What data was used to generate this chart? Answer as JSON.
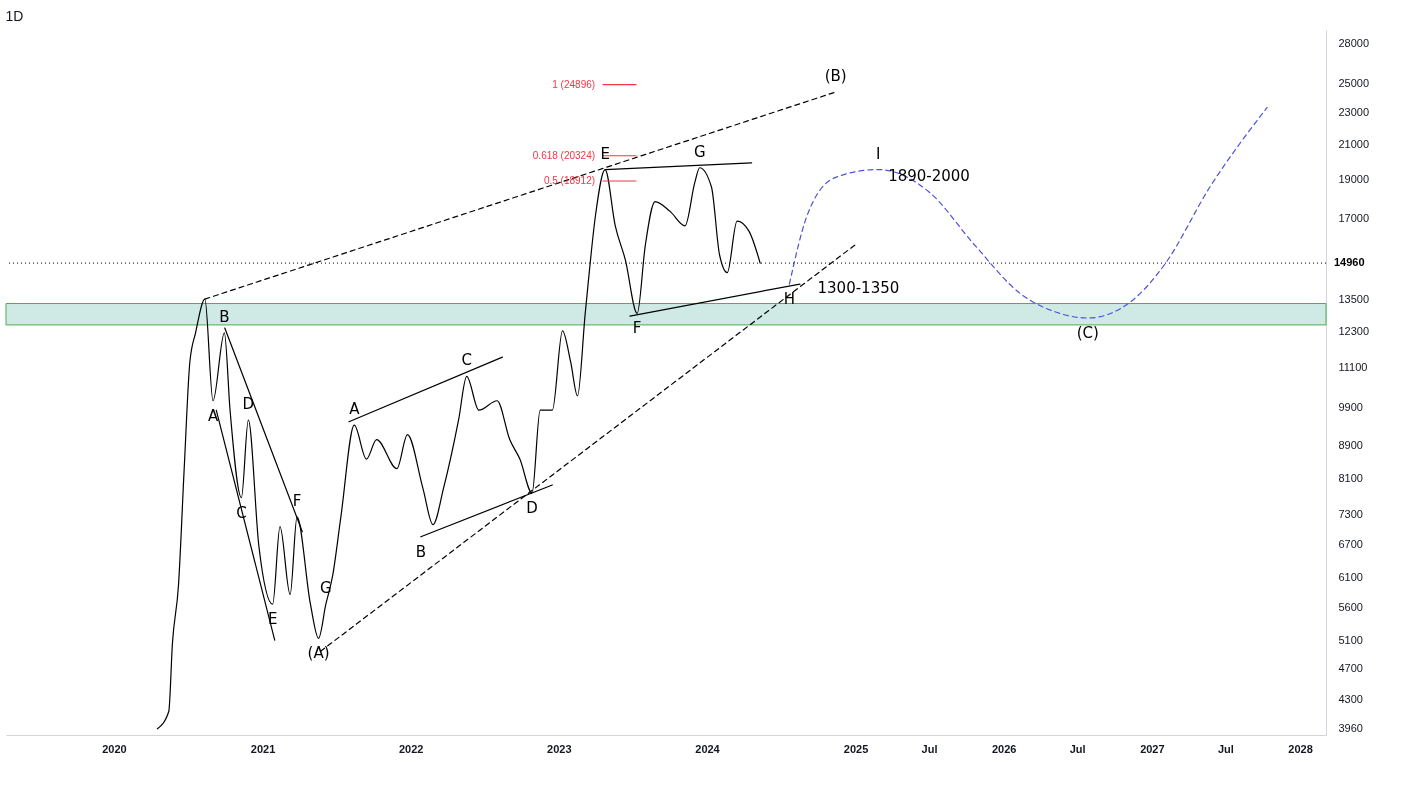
{
  "chart_data": {
    "type": "line",
    "title": "1D",
    "log": "y",
    "xlim": [
      "2019-04-10",
      "2028-03-05"
    ],
    "ylim": [
      3890,
      29100
    ],
    "xticks": [
      {
        "value": "2020",
        "label": "2020"
      },
      {
        "value": "2021",
        "label": "2021"
      },
      {
        "value": "2022",
        "label": "2022"
      },
      {
        "value": "2023",
        "label": "2023"
      },
      {
        "value": "2024",
        "label": "2024"
      },
      {
        "value": "2025",
        "label": "2025"
      },
      {
        "value": "2025-07",
        "label": "Jul"
      },
      {
        "value": "2026",
        "label": "2026"
      },
      {
        "value": "2026-07",
        "label": "Jul"
      },
      {
        "value": "2027",
        "label": "2027"
      },
      {
        "value": "2027-07",
        "label": "Jul"
      },
      {
        "value": "2028",
        "label": "2028"
      }
    ],
    "yticks": [
      28000,
      25000,
      23000,
      21000,
      19000,
      17000,
      13500,
      12300,
      11100,
      9900,
      8900,
      8100,
      7300,
      6700,
      6100,
      5600,
      5100,
      4700,
      4300,
      3960
    ],
    "series": [
      {
        "color": "#000000",
        "x": [
          "2020-04-17",
          "2020-05-15",
          "2020-05-24",
          "2020-06-08",
          "2020-06-22",
          "2020-07-06",
          "2020-07-20",
          "2020-08-12",
          "2020-09-01",
          "2020-09-29",
          "2020-10-13",
          "2020-11-10",
          "2020-11-27",
          "2020-12-23",
          "2021-01-26",
          "2021-02-13",
          "2021-03-10",
          "2021-03-27",
          "2021-04-29",
          "2021-05-19",
          "2021-06-06",
          "2021-06-23",
          "2021-07-13",
          "2021-08-15",
          "2021-09-14",
          "2021-10-09",
          "2021-11-28",
          "2021-12-24",
          "2022-01-31",
          "2022-02-25",
          "2022-03-23",
          "2022-04-29",
          "2022-05-19",
          "2022-06-18",
          "2022-08-02",
          "2022-09-02",
          "2022-09-27",
          "2022-10-27",
          "2022-11-16",
          "2022-12-16",
          "2023-01-10",
          "2023-01-30",
          "2023-02-16",
          "2023-03-07",
          "2023-03-14",
          "2023-04-01",
          "2023-04-25",
          "2023-05-20",
          "2023-06-14",
          "2023-07-13",
          "2023-08-02",
          "2023-08-26",
          "2023-10-02",
          "2023-11-08",
          "2023-12-02",
          "2023-12-14",
          "2024-01-12",
          "2024-02-01",
          "2024-02-20",
          "2024-03-15",
          "2024-04-13",
          "2024-05-11"
        ],
        "values": [
          3960,
          4160,
          5050,
          5970,
          8320,
          11290,
          12260,
          13500,
          10100,
          12260,
          9830,
          7660,
          9560,
          6670,
          5650,
          7050,
          5810,
          7250,
          5650,
          5125,
          5650,
          6140,
          7250,
          9420,
          8550,
          9040,
          8320,
          9170,
          7870,
          7090,
          7870,
          9560,
          10830,
          9830,
          10100,
          9040,
          8550,
          7760,
          9830,
          9830,
          12330,
          11290,
          10240,
          12960,
          14080,
          17100,
          19540,
          16640,
          15090,
          12960,
          15740,
          17830,
          17340,
          16640,
          18840,
          19640,
          18590,
          15310,
          14560,
          16860,
          16400,
          14960
        ]
      },
      {
        "color": "#5050d8",
        "line_style": "dashed",
        "x": [
          "2024-07-22",
          "2024-09-03",
          "2024-11-13",
          "2025-02-26",
          "2025-07-01",
          "2025-10-22",
          "2026-02-12",
          "2026-05-11",
          "2026-07-27",
          "2026-11-04",
          "2027-02-01",
          "2027-05-24",
          "2027-10-12"
        ],
        "values": [
          14090,
          17100,
          19110,
          19540,
          18330,
          15740,
          13700,
          13000,
          12790,
          13330,
          14890,
          18590,
          23330
        ]
      },
      {
        "color": "#000000",
        "line_style": "dashed",
        "x": [
          "2020-08-12",
          "2024-11-13"
        ],
        "values": [
          13500,
          24380
        ]
      },
      {
        "color": "#000000",
        "line_style": "dashed",
        "x": [
          "2021-05-24",
          "2025-01-05"
        ],
        "values": [
          4940,
          15830
        ]
      },
      {
        "color": "#000000",
        "x": [
          "2023-04-25",
          "2024-04-20"
        ],
        "values": [
          19540,
          19920
        ]
      },
      {
        "color": "#000000",
        "x": [
          "2023-06-25",
          "2024-08-17"
        ],
        "values": [
          12860,
          14090
        ]
      },
      {
        "color": "#000000",
        "x": [
          "2020-09-09",
          "2021-01-31"
        ],
        "values": [
          9830,
          5100
        ]
      },
      {
        "color": "#000000",
        "x": [
          "2020-09-30",
          "2021-04-09"
        ],
        "values": [
          12430,
          6950
        ]
      },
      {
        "color": "#000000",
        "x": [
          "2021-08-02",
          "2022-08-15"
        ],
        "values": [
          9510,
          11440
        ]
      },
      {
        "color": "#000000",
        "x": [
          "2022-01-26",
          "2022-12-16"
        ],
        "values": [
          6850,
          7940
        ]
      },
      {
        "color": "#f23645",
        "name": "1 (24896)",
        "x": [
          "2023-04-20",
          "2023-07-10"
        ],
        "values": [
          24896,
          24896
        ]
      },
      {
        "color": "#f23645",
        "name": "0.618 (20324)",
        "x": [
          "2023-04-20",
          "2023-07-10"
        ],
        "values": [
          20324,
          20324
        ]
      },
      {
        "color": "#f23645",
        "name": "0.5 (18912)",
        "x": [
          "2023-04-20",
          "2023-07-10"
        ],
        "values": [
          18912,
          18912
        ]
      }
    ],
    "ref_lines": [
      {
        "axis": "y",
        "value": 14960,
        "label": "14960",
        "color": "#000000",
        "line_style": "dotted"
      }
    ],
    "bands": [
      {
        "axis": "y",
        "from": 12540,
        "to": 13330,
        "color": "#cfeae4"
      }
    ],
    "annotations": [
      {
        "text": "A",
        "x": "2020-09-01",
        "y": 10100
      },
      {
        "text": "B",
        "x": "2020-09-29",
        "y": 12260
      },
      {
        "text": "C",
        "x": "2020-11-10",
        "y": 7660
      },
      {
        "text": "D",
        "x": "2020-11-27",
        "y": 9560
      },
      {
        "text": "E",
        "x": "2021-01-26",
        "y": 5650
      },
      {
        "text": "F",
        "x": "2021-03-27",
        "y": 7250
      },
      {
        "text": "G",
        "x": "2021-06-06",
        "y": 5650
      },
      {
        "text": "(A)",
        "x": "2021-05-19",
        "y": 5125
      },
      {
        "text": "A",
        "x": "2021-08-15",
        "y": 9420
      },
      {
        "text": "B",
        "x": "2022-01-26",
        "y": 6850
      },
      {
        "text": "C",
        "x": "2022-05-19",
        "y": 10830
      },
      {
        "text": "D",
        "x": "2022-10-27",
        "y": 7760
      },
      {
        "text": "E",
        "x": "2023-04-25",
        "y": 19540
      },
      {
        "text": "F",
        "x": "2023-07-13",
        "y": 12960
      },
      {
        "text": "G",
        "x": "2023-12-14",
        "y": 19640
      },
      {
        "text": "H",
        "x": "2024-07-22",
        "y": 14090
      },
      {
        "text": "(B)",
        "x": "2024-11-13",
        "y": 24380
      },
      {
        "text": "I",
        "x": "2025-02-26",
        "y": 19540
      },
      {
        "text": "(C)",
        "x": "2026-07-27",
        "y": 12790
      },
      {
        "text": "1890-2000",
        "x": "2025-07-01",
        "y": 18330
      },
      {
        "text": "1300-1350",
        "x": "2025-01-08",
        "y": 13330
      }
    ]
  }
}
